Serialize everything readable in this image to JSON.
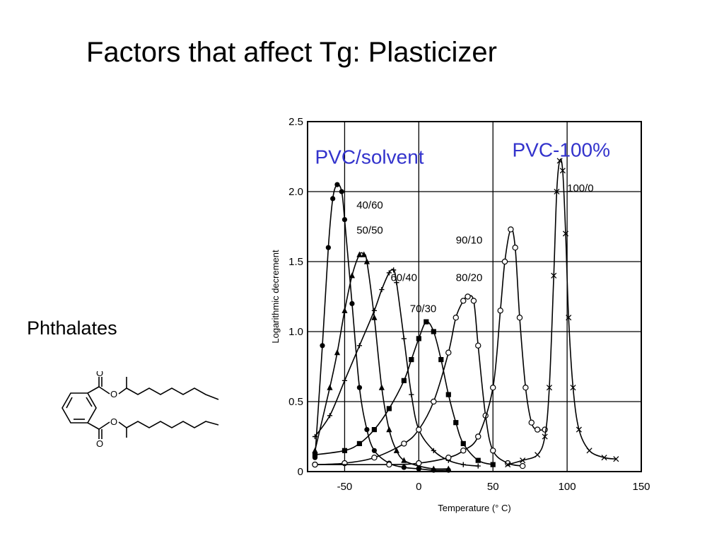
{
  "slide": {
    "title": "Factors that affect Tg: Plasticizer",
    "side_label": "Phthalates"
  },
  "molecule": {
    "atom_labels": [
      "O",
      "O",
      "O",
      "O"
    ]
  },
  "chart_data": {
    "type": "line",
    "title": "",
    "xlabel": "Temperature",
    "xlabel_unit": "(° C)",
    "ylabel": "Logarithmic decrement",
    "xlim": [
      -75,
      150
    ],
    "ylim": [
      0,
      2.5
    ],
    "x_ticks": [
      -50,
      0,
      50,
      100,
      150
    ],
    "y_ticks": [
      0,
      0.5,
      1.0,
      1.5,
      2.0,
      2.5
    ],
    "y_tick_labels": [
      "0",
      "0.5",
      "1.0",
      "1.5",
      "2.0",
      "2.5"
    ],
    "grid": true,
    "annotations": [
      {
        "text": "PVC/solvent",
        "x": -70,
        "y": 2.2,
        "color": "#3333cc",
        "size": "large"
      },
      {
        "text": "PVC-100%",
        "x": 63,
        "y": 2.25,
        "color": "#3333cc",
        "size": "large"
      }
    ],
    "series": [
      {
        "name": "40/60",
        "label_x": -42,
        "label_y": 1.88,
        "marker": "filled-circle",
        "x": [
          -70,
          -65,
          -61,
          -58,
          -55,
          -52,
          -50,
          -45,
          -40,
          -35,
          -30,
          -20,
          -10,
          0,
          10,
          20
        ],
        "y": [
          0.1,
          0.9,
          1.6,
          1.95,
          2.05,
          2.0,
          1.8,
          1.2,
          0.6,
          0.3,
          0.15,
          0.06,
          0.03,
          0.02,
          0.01,
          0.01
        ]
      },
      {
        "name": "50/50",
        "label_x": -42,
        "label_y": 1.7,
        "marker": "filled-triangle",
        "x": [
          -70,
          -60,
          -55,
          -50,
          -45,
          -40,
          -37,
          -35,
          -30,
          -25,
          -20,
          -15,
          -10,
          0,
          10,
          20
        ],
        "y": [
          0.15,
          0.6,
          0.85,
          1.15,
          1.4,
          1.55,
          1.55,
          1.5,
          1.1,
          0.6,
          0.3,
          0.15,
          0.08,
          0.04,
          0.02,
          0.02
        ]
      },
      {
        "name": "60/40",
        "label_x": -19,
        "label_y": 1.36,
        "marker": "plus",
        "x": [
          -70,
          -60,
          -50,
          -40,
          -30,
          -25,
          -20,
          -17,
          -15,
          -10,
          -5,
          0,
          10,
          20,
          30,
          40
        ],
        "y": [
          0.25,
          0.4,
          0.65,
          0.9,
          1.15,
          1.3,
          1.42,
          1.44,
          1.35,
          0.95,
          0.55,
          0.3,
          0.15,
          0.08,
          0.05,
          0.04
        ]
      },
      {
        "name": "70/30",
        "label_x": -6,
        "label_y": 1.14,
        "marker": "filled-square",
        "x": [
          -70,
          -50,
          -40,
          -30,
          -20,
          -10,
          -5,
          0,
          5,
          10,
          15,
          20,
          25,
          30,
          40,
          50
        ],
        "y": [
          0.12,
          0.15,
          0.2,
          0.3,
          0.45,
          0.65,
          0.8,
          0.95,
          1.07,
          1.0,
          0.8,
          0.55,
          0.35,
          0.2,
          0.08,
          0.05
        ]
      },
      {
        "name": "80/20",
        "label_x": 25,
        "label_y": 1.36,
        "marker": "open-circle",
        "x": [
          -70,
          -50,
          -30,
          -10,
          0,
          10,
          20,
          25,
          30,
          33,
          37,
          40,
          45,
          50,
          60,
          70
        ],
        "y": [
          0.05,
          0.06,
          0.1,
          0.2,
          0.3,
          0.5,
          0.85,
          1.1,
          1.22,
          1.25,
          1.22,
          0.9,
          0.4,
          0.15,
          0.06,
          0.04
        ]
      },
      {
        "name": "90/10",
        "label_x": 25,
        "label_y": 1.63,
        "marker": "open-circle",
        "x": [
          -70,
          -20,
          0,
          20,
          30,
          40,
          50,
          55,
          58,
          62,
          65,
          68,
          72,
          76,
          80,
          85
        ],
        "y": [
          0.05,
          0.05,
          0.06,
          0.1,
          0.15,
          0.25,
          0.6,
          1.15,
          1.5,
          1.73,
          1.6,
          1.1,
          0.6,
          0.35,
          0.3,
          0.3
        ]
      },
      {
        "name": "100/0",
        "label_x": 100,
        "label_y": 2.0,
        "marker": "cross",
        "x": [
          60,
          70,
          80,
          85,
          88,
          91,
          93,
          95,
          97,
          99,
          101,
          104,
          108,
          115,
          125,
          133
        ],
        "y": [
          0.05,
          0.08,
          0.12,
          0.25,
          0.6,
          1.4,
          2.0,
          2.22,
          2.15,
          1.7,
          1.1,
          0.6,
          0.3,
          0.15,
          0.1,
          0.09
        ]
      }
    ]
  }
}
